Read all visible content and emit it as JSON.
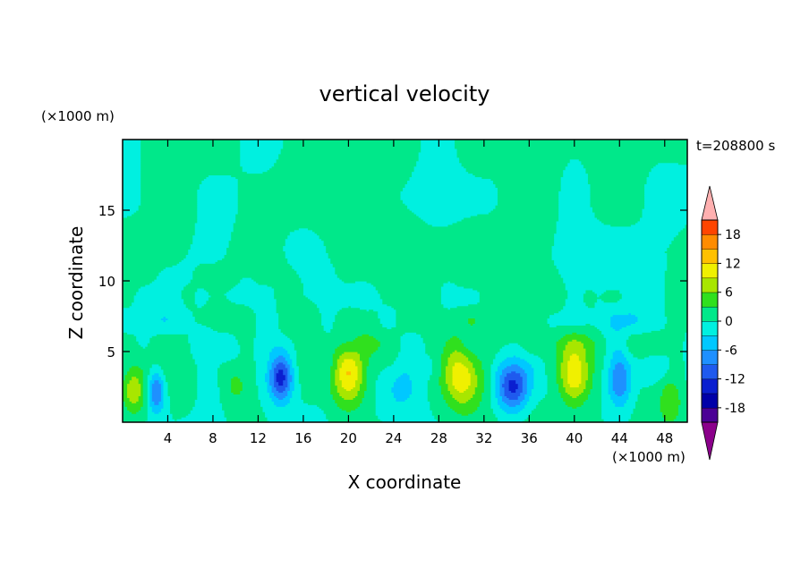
{
  "chart_data": {
    "type": "heatmap",
    "title": "vertical velocity",
    "xlabel": "X coordinate",
    "ylabel": "Z coordinate",
    "x_unit": "(×1000 m)",
    "y_unit": "(×1000 m)",
    "time_label": "t=208800 s",
    "xlim": [
      0,
      50
    ],
    "ylim": [
      0,
      20
    ],
    "x_ticks": [
      4,
      8,
      12,
      16,
      20,
      24,
      28,
      32,
      36,
      40,
      44,
      48
    ],
    "y_ticks": [
      5,
      10,
      15
    ],
    "colorbar": {
      "ticks": [
        18,
        12,
        6,
        0,
        -6,
        -12,
        -18
      ],
      "levels": [
        -21,
        -18,
        -15,
        -12,
        -9,
        -6,
        -3,
        0,
        3,
        6,
        9,
        12,
        15,
        18,
        21
      ],
      "colors": [
        "#8b008b",
        "#4b0095",
        "#0000a8",
        "#0a1fd0",
        "#1f5aee",
        "#1e90ff",
        "#00c8ff",
        "#00f0e0",
        "#00e88a",
        "#30e01e",
        "#a8e600",
        "#f0f000",
        "#ffc000",
        "#ff8c00",
        "#ff4500",
        "#e60000",
        "#ffb0b0"
      ],
      "extend": "both"
    },
    "updraft_centers_x": [
      1,
      20,
      30,
      40
    ],
    "downdraft_centers_x": [
      3,
      14,
      34.5,
      44
    ]
  }
}
